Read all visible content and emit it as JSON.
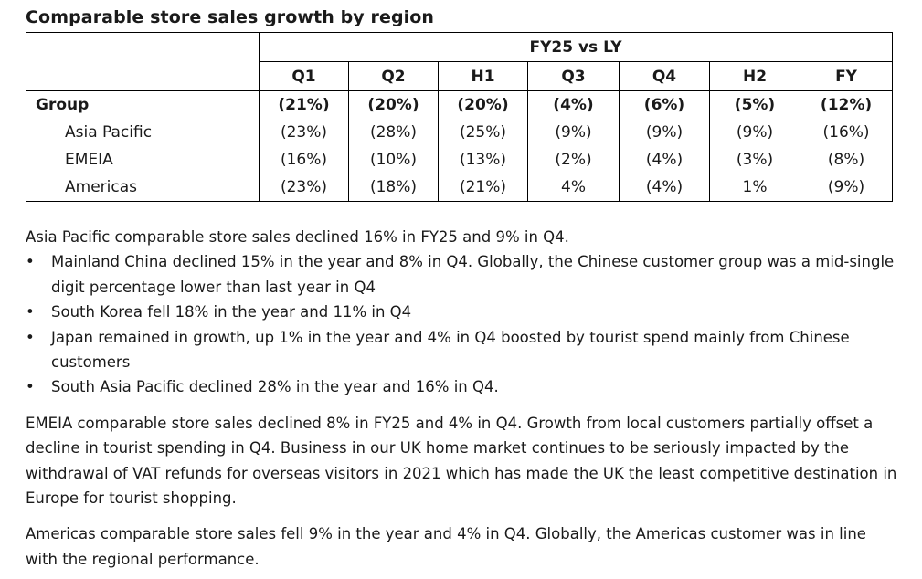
{
  "title": "Comparable store sales growth by region",
  "table": {
    "span_header": "FY25 vs LY",
    "columns": [
      "Q1",
      "Q2",
      "H1",
      "Q3",
      "Q4",
      "H2",
      "FY"
    ],
    "rows": [
      {
        "label": "Group",
        "values": [
          "(21%)",
          "(20%)",
          "(20%)",
          "(4%)",
          "(6%)",
          "(5%)",
          "(12%)"
        ]
      },
      {
        "label": "Asia Pacific",
        "values": [
          "(23%)",
          "(28%)",
          "(25%)",
          "(9%)",
          "(9%)",
          "(9%)",
          "(16%)"
        ]
      },
      {
        "label": "EMEIA",
        "values": [
          "(16%)",
          "(10%)",
          "(13%)",
          "(2%)",
          "(4%)",
          "(3%)",
          "(8%)"
        ]
      },
      {
        "label": "Americas",
        "values": [
          "(23%)",
          "(18%)",
          "(21%)",
          "4%",
          "(4%)",
          "1%",
          "(9%)"
        ]
      }
    ]
  },
  "asia_intro": "Asia Pacific comparable store sales declined 16% in FY25 and 9% in Q4.",
  "bullets": [
    "Mainland China declined 15% in the year and 8% in Q4. Globally, the Chinese customer group was a mid-single digit percentage lower than last year in Q4",
    "South Korea fell 18% in the year and 11% in Q4",
    "Japan remained in growth, up 1% in the year and 4% in Q4 boosted by tourist spend mainly from Chinese customers",
    "South Asia Pacific declined 28% in the year and 16% in Q4."
  ],
  "emeia_paragraph": "EMEIA comparable store sales declined 8% in FY25 and 4% in Q4. Growth from local customers partially offset a decline in tourist spending in Q4. Business in our UK home market continues to be seriously impacted by the withdrawal of VAT refunds for overseas visitors in 2021 which has made the UK the least competitive destination in Europe for tourist shopping.",
  "americas_paragraph": "Americas comparable store sales fell 9% in the year and 4% in Q4. Globally, the Americas customer was in line with the regional performance."
}
